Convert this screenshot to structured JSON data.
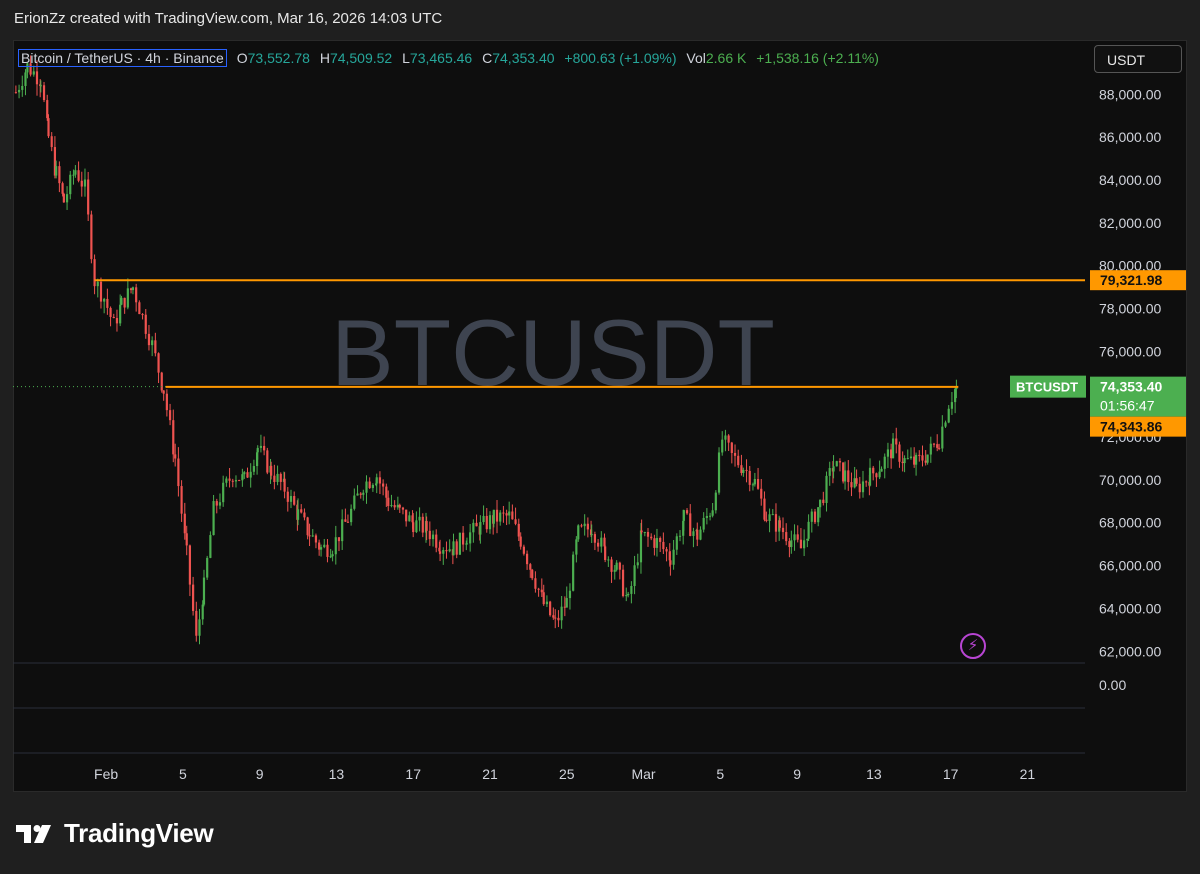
{
  "header": {
    "text": "ErionZz created with TradingView.com, Mar 16, 2026 14:03 UTC"
  },
  "legend": {
    "symbol": "Bitcoin / TetherUS · 4h · Binance",
    "open_label": "O",
    "open": "73,552.78",
    "high_label": "H",
    "high": "74,509.52",
    "low_label": "L",
    "low": "73,465.46",
    "close_label": "C",
    "close": "74,353.40",
    "change": "+800.63 (+1.09%)",
    "vol_label": "Vol",
    "vol": "2.66 K",
    "vol_change": "+1,538.16 (+2.11%)"
  },
  "currency_button": "USDT",
  "watermark": "BTCUSDT",
  "price_tag": {
    "label": "BTCUSDT",
    "price": "74,353.40",
    "countdown": "01:56:47"
  },
  "levels": [
    {
      "value": 79321.98,
      "label": "79,321.98"
    },
    {
      "value": 74343.86,
      "label": "74,343.86"
    }
  ],
  "colors": {
    "up": "#26a69a",
    "up_bright": "#4caf50",
    "down": "#ef5350",
    "level": "#ff9800",
    "watermark": "#3e4450",
    "alert": "#b845d3"
  },
  "icons": {
    "alert": "lightning-alert-icon",
    "logo": "tradingview-logo-icon"
  },
  "footer": {
    "brand": "TradingView"
  },
  "chart_data": {
    "type": "candlestick",
    "interval": "4h",
    "yaxis_ticks": [
      "88,000.00",
      "86,000.00",
      "84,000.00",
      "82,000.00",
      "80,000.00",
      "78,000.00",
      "76,000.00",
      "74,000.00",
      "72,000.00",
      "70,000.00",
      "68,000.00",
      "66,000.00",
      "64,000.00",
      "62,000.00"
    ],
    "yaxis_values": [
      88000,
      86000,
      84000,
      82000,
      80000,
      78000,
      76000,
      74000,
      72000,
      70000,
      68000,
      66000,
      64000,
      62000
    ],
    "ylim": [
      61500,
      90300
    ],
    "volume_pane_label": "0.00",
    "xaxis_ticks": [
      "Feb",
      "5",
      "9",
      "13",
      "17",
      "21",
      "25",
      "Mar",
      "5",
      "9",
      "13",
      "17",
      "21"
    ],
    "xaxis_days": [
      1,
      5,
      9,
      13,
      17,
      21,
      25,
      29,
      33,
      37,
      41,
      45,
      49
    ],
    "xlim": [
      -3.85,
      52
    ],
    "anchors": [
      [
        -3.7,
        88100
      ],
      [
        -3.1,
        89300
      ],
      [
        -2.4,
        88700
      ],
      [
        -2.0,
        86000
      ],
      [
        -1.6,
        84300
      ],
      [
        -1.2,
        83000
      ],
      [
        -0.6,
        84500
      ],
      [
        -0.1,
        83600
      ],
      [
        0.4,
        79300
      ],
      [
        0.9,
        78500
      ],
      [
        1.4,
        77200
      ],
      [
        1.8,
        78200
      ],
      [
        2.4,
        79000
      ],
      [
        2.9,
        77600
      ],
      [
        3.4,
        76300
      ],
      [
        4.0,
        74200
      ],
      [
        4.6,
        71000
      ],
      [
        5.2,
        66500
      ],
      [
        5.7,
        62500
      ],
      [
        6.1,
        65000
      ],
      [
        6.6,
        68600
      ],
      [
        7.1,
        69500
      ],
      [
        7.6,
        70300
      ],
      [
        8.2,
        70000
      ],
      [
        8.9,
        71500
      ],
      [
        9.6,
        70400
      ],
      [
        10.3,
        69600
      ],
      [
        11.0,
        68400
      ],
      [
        11.6,
        67500
      ],
      [
        12.2,
        66800
      ],
      [
        12.8,
        66900
      ],
      [
        13.6,
        68200
      ],
      [
        14.4,
        69800
      ],
      [
        15.1,
        70200
      ],
      [
        15.7,
        69000
      ],
      [
        16.3,
        68500
      ],
      [
        17.0,
        68000
      ],
      [
        17.7,
        67700
      ],
      [
        18.4,
        67000
      ],
      [
        19.1,
        66800
      ],
      [
        19.8,
        67400
      ],
      [
        20.5,
        67800
      ],
      [
        21.2,
        68200
      ],
      [
        22.0,
        68300
      ],
      [
        22.6,
        67200
      ],
      [
        23.2,
        65700
      ],
      [
        23.8,
        64200
      ],
      [
        24.4,
        63300
      ],
      [
        25.0,
        64300
      ],
      [
        25.6,
        67500
      ],
      [
        26.3,
        67800
      ],
      [
        27.0,
        66600
      ],
      [
        27.6,
        65800
      ],
      [
        28.2,
        64300
      ],
      [
        28.9,
        67400
      ],
      [
        29.7,
        67100
      ],
      [
        30.4,
        66400
      ],
      [
        31.1,
        68200
      ],
      [
        31.8,
        67400
      ],
      [
        32.6,
        68800
      ],
      [
        33.1,
        71900
      ],
      [
        33.6,
        71100
      ],
      [
        34.2,
        70600
      ],
      [
        34.8,
        69900
      ],
      [
        35.4,
        68300
      ],
      [
        36.1,
        67800
      ],
      [
        36.7,
        67200
      ],
      [
        37.2,
        66800
      ],
      [
        37.6,
        67800
      ],
      [
        38.2,
        68900
      ],
      [
        38.9,
        70700
      ],
      [
        39.5,
        70200
      ],
      [
        40.1,
        69600
      ],
      [
        40.8,
        70200
      ],
      [
        41.4,
        70700
      ],
      [
        42.0,
        71500
      ],
      [
        42.6,
        70900
      ],
      [
        43.2,
        70800
      ],
      [
        43.8,
        71200
      ],
      [
        44.4,
        71900
      ],
      [
        44.9,
        73600
      ],
      [
        45.3,
        74353
      ]
    ]
  }
}
